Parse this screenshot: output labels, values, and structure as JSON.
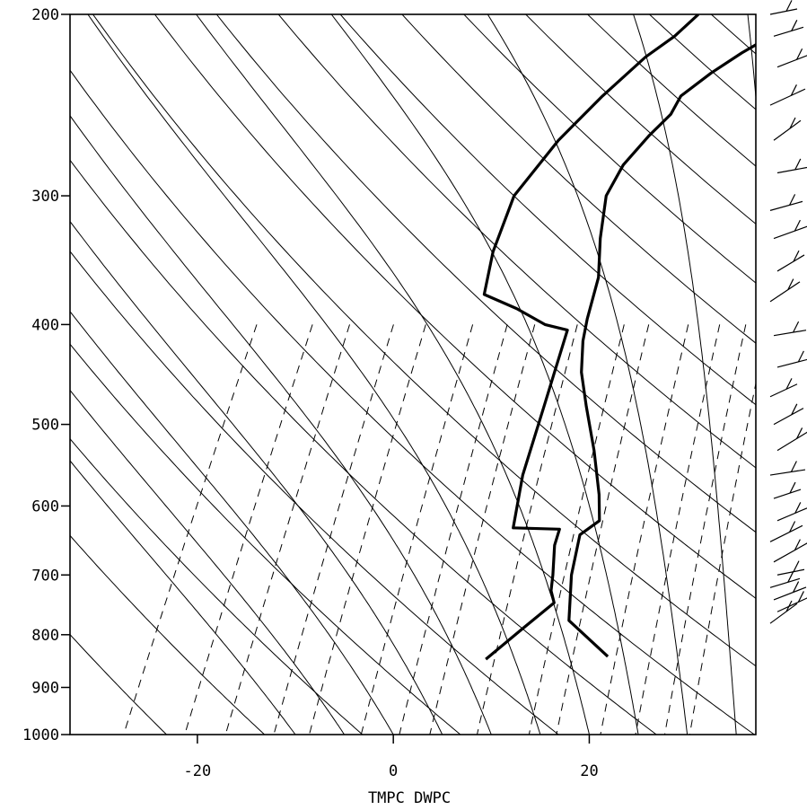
{
  "chart_data": {
    "type": "line",
    "subtype": "skew-T log-P sounding",
    "title": "",
    "xlabel": "TMPC DWPC",
    "ylabel": "",
    "x_ticks": [
      -20,
      0,
      20
    ],
    "y_ticks": [
      200,
      300,
      400,
      500,
      600,
      700,
      800,
      900,
      1000
    ],
    "xlim": [
      -33,
      37
    ],
    "ylim": [
      1000,
      200
    ],
    "y_scale": "log",
    "skew_deg_per_decade": 58,
    "grid": true,
    "background_lines": {
      "dry_adiabats_theta_K": [
        230,
        240,
        250,
        260,
        270,
        280,
        290,
        300,
        310,
        320,
        330,
        340,
        350,
        360,
        370,
        380,
        390,
        400,
        410,
        420,
        430,
        440,
        450
      ],
      "moist_adiabats_C": [
        -10,
        -5,
        0,
        5,
        10,
        15,
        20,
        25,
        30,
        35,
        40
      ],
      "mixing_ratio_gkg": [
        0.4,
        0.7,
        1,
        1.5,
        2,
        3,
        4,
        5,
        7,
        10,
        12,
        16,
        20,
        24,
        28
      ]
    },
    "series": [
      {
        "name": "TMPC",
        "points": [
          [
            840,
            17.5
          ],
          [
            775,
            11.5
          ],
          [
            700,
            9.2
          ],
          [
            640,
            7.8
          ],
          [
            620,
            9.0
          ],
          [
            585,
            7.5
          ],
          [
            530,
            4.5
          ],
          [
            480,
            1.2
          ],
          [
            445,
            -1.2
          ],
          [
            415,
            -2.8
          ],
          [
            395,
            -3.6
          ],
          [
            360,
            -4.8
          ],
          [
            330,
            -6.8
          ],
          [
            300,
            -8.6
          ],
          [
            280,
            -8.6
          ],
          [
            262,
            -7.6
          ],
          [
            250,
            -6.6
          ],
          [
            240,
            -6.6
          ],
          [
            228,
            -4.8
          ],
          [
            218,
            -2.8
          ],
          [
            210,
            -0.8
          ],
          [
            200,
            2.6
          ]
        ]
      },
      {
        "name": "DWPC",
        "points": [
          [
            845,
            5.2
          ],
          [
            790,
            7.2
          ],
          [
            745,
            9.0
          ],
          [
            725,
            8.0
          ],
          [
            700,
            7.3
          ],
          [
            655,
            5.8
          ],
          [
            632,
            5.4
          ],
          [
            630,
            0.6
          ],
          [
            560,
            -1.4
          ],
          [
            480,
            -3.1
          ],
          [
            405,
            -5.0
          ],
          [
            400,
            -7.6
          ],
          [
            386,
            -11.4
          ],
          [
            374,
            -15.5
          ],
          [
            340,
            -17.0
          ],
          [
            300,
            -18.0
          ],
          [
            265,
            -16.6
          ],
          [
            240,
            -14.6
          ],
          [
            220,
            -12.4
          ],
          [
            210,
            -10.6
          ],
          [
            200,
            -9.4
          ]
        ]
      }
    ],
    "right_panel": "wind barbs"
  }
}
